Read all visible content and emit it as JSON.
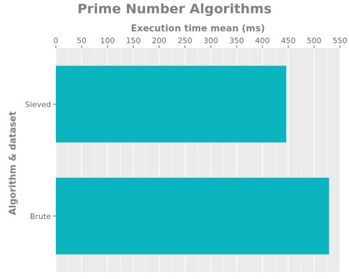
{
  "chart_data": {
    "type": "bar",
    "orientation": "horizontal",
    "title": "Prime Number Algorithms",
    "xlabel": "Execution time mean (ms)",
    "ylabel": "Algorithm & dataset",
    "categories": [
      "Sieved",
      "Brute"
    ],
    "values": [
      446,
      529
    ],
    "xlim": [
      0,
      550
    ],
    "xticks": [
      0,
      50,
      100,
      150,
      200,
      250,
      300,
      350,
      400,
      450,
      500,
      550
    ],
    "x_axis_position": "top",
    "grid": true,
    "legend": "none",
    "colors": {
      "bar": "#0bb5bf",
      "panel": "#ebebeb",
      "gridline": "#ffffff",
      "text": "#808080"
    }
  }
}
